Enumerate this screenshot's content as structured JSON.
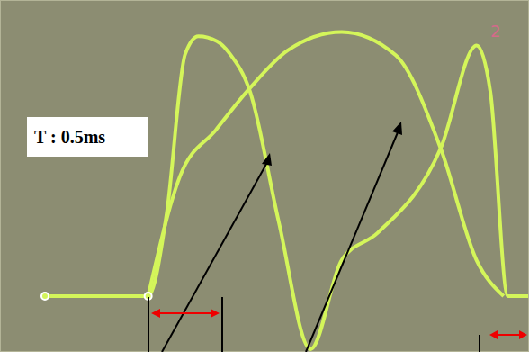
{
  "chart_data": {
    "type": "line",
    "annotations": [
      "T : 0.5ms",
      "2"
    ],
    "xlim": [
      0,
      10
    ],
    "xticks": [
      0,
      1,
      2,
      3,
      4,
      5,
      6,
      7,
      8,
      9,
      10
    ],
    "ylim": [
      0,
      6.5
    ],
    "yticks": [
      0,
      1,
      2,
      3,
      4,
      5,
      6
    ],
    "grid": true,
    "tick_labels": false,
    "series": [
      {
        "color": "#d4f55a",
        "marker": "none",
        "line_style": "solid",
        "x": [
          0.85,
          2.8,
          3.15,
          3.5,
          3.75,
          4.1,
          4.35,
          4.73,
          5.27,
          5.87,
          6.46,
          7.14,
          8.33,
          9.01,
          9.27,
          9.6,
          10
        ],
        "values": [
          1.03,
          1.03,
          2.55,
          5.5,
          5.83,
          5.74,
          5.5,
          4.8,
          2.4,
          0.05,
          1.7,
          2.2,
          3.76,
          5.66,
          4.8,
          1.03,
          1.03
        ]
      },
      {
        "color": "#d4f55a",
        "marker": "none",
        "line_style": "solid",
        "x": [
          2.8,
          3.4,
          4.08,
          4.73,
          5.44,
          6.46,
          7.48,
          8.33,
          9.01,
          9.52
        ],
        "values": [
          1.03,
          3.24,
          4.1,
          4.88,
          5.57,
          5.91,
          5.48,
          3.76,
          1.69,
          1.03
        ]
      }
    ]
  }
}
